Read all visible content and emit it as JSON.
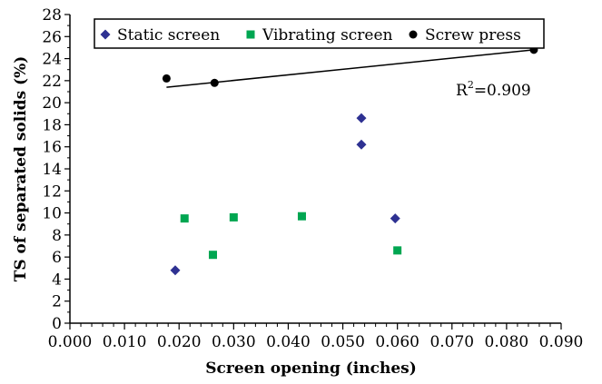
{
  "chart_data": {
    "type": "scatter",
    "title": "",
    "xlabel": "Screen opening (inches)",
    "ylabel": "TS of separated solids (%)",
    "xlim": [
      0.0,
      0.09
    ],
    "ylim": [
      0,
      28
    ],
    "x_ticks": [
      "0.000",
      "0.010",
      "0.020",
      "0.030",
      "0.040",
      "0.050",
      "0.060",
      "0.070",
      "0.080",
      "0.090"
    ],
    "y_ticks": [
      "0",
      "2",
      "4",
      "6",
      "8",
      "10",
      "12",
      "14",
      "16",
      "18",
      "20",
      "22",
      "24",
      "26",
      "28"
    ],
    "y_tick_labels": [
      "0",
      "2",
      "4",
      "6",
      "8",
      "10",
      "12",
      "14",
      "16",
      "18",
      "20",
      "22",
      "24",
      "26",
      "28"
    ],
    "legend_position": "top",
    "grid": false,
    "series": [
      {
        "name": "Static screen",
        "marker": "diamond",
        "color": "#2E3192",
        "points": [
          {
            "x": 0.0193,
            "y": 4.8
          },
          {
            "x": 0.0534,
            "y": 16.2
          },
          {
            "x": 0.0534,
            "y": 18.6
          },
          {
            "x": 0.0596,
            "y": 9.5
          }
        ]
      },
      {
        "name": "Vibrating screen",
        "marker": "square",
        "color": "#00A651",
        "points": [
          {
            "x": 0.021,
            "y": 9.5
          },
          {
            "x": 0.0262,
            "y": 6.2
          },
          {
            "x": 0.03,
            "y": 9.6
          },
          {
            "x": 0.0425,
            "y": 9.7
          },
          {
            "x": 0.06,
            "y": 6.6
          }
        ]
      },
      {
        "name": "Screw press",
        "marker": "circle",
        "color": "#000000",
        "points": [
          {
            "x": 0.0177,
            "y": 22.2
          },
          {
            "x": 0.0265,
            "y": 21.8
          },
          {
            "x": 0.085,
            "y": 24.8
          }
        ]
      }
    ],
    "trendline": {
      "series": "Screw press",
      "points": [
        {
          "x": 0.0177,
          "y": 21.4
        },
        {
          "x": 0.085,
          "y": 24.8
        }
      ],
      "label_base": "R",
      "label_sup": "2",
      "label_rest": "=0.909"
    }
  }
}
